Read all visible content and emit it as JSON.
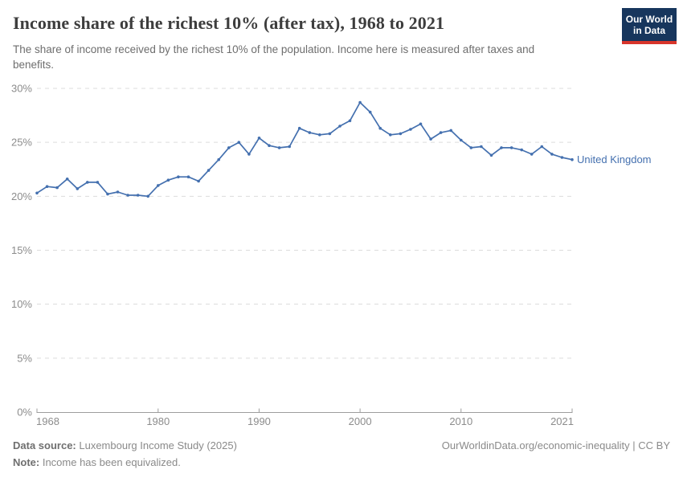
{
  "header": {
    "title": "Income share of the richest 10% (after tax), 1968 to 2021",
    "subtitle": "The share of income received by the richest 10% of the population. Income here is measured after taxes and benefits.",
    "logo": {
      "line1": "Our World",
      "line2": "in Data"
    }
  },
  "footer": {
    "source_label": "Data source:",
    "source_text": " Luxembourg Income Study (2025)",
    "note_label": "Note:",
    "note_text": " Income has been equivalized.",
    "citation": "OurWorldinData.org/economic-inequality | CC BY"
  },
  "colors": {
    "series_blue": "#4470af",
    "grid": "#dcdcdc",
    "axis": "#9e9e9e",
    "tick_label": "#8c8c8c",
    "logo_bg": "#17365d",
    "logo_red": "#d8352b"
  },
  "chart_data": {
    "type": "line",
    "title": "Income share of the richest 10% (after tax), 1968 to 2021",
    "xlabel": "",
    "ylabel": "",
    "xlim": [
      1968,
      2021
    ],
    "ylim": [
      0,
      30
    ],
    "x_ticks": [
      1968,
      1980,
      1990,
      2000,
      2010,
      2021
    ],
    "y_ticks": [
      0,
      5,
      10,
      15,
      20,
      25,
      30
    ],
    "y_tick_suffix": "%",
    "grid": "dashed horizontal",
    "legend_position": "end-of-line label",
    "series": [
      {
        "name": "United Kingdom",
        "color": "#4470af",
        "x": [
          1968,
          1969,
          1970,
          1971,
          1972,
          1973,
          1974,
          1975,
          1976,
          1977,
          1978,
          1979,
          1980,
          1981,
          1982,
          1983,
          1984,
          1985,
          1986,
          1987,
          1988,
          1989,
          1990,
          1991,
          1992,
          1993,
          1994,
          1995,
          1996,
          1997,
          1998,
          1999,
          2000,
          2001,
          2002,
          2003,
          2004,
          2005,
          2006,
          2007,
          2008,
          2009,
          2010,
          2011,
          2012,
          2013,
          2014,
          2015,
          2016,
          2017,
          2018,
          2019,
          2020,
          2021
        ],
        "values": [
          20.3,
          20.9,
          20.8,
          21.6,
          20.7,
          21.3,
          21.3,
          20.2,
          20.4,
          20.1,
          20.1,
          20.0,
          21.0,
          21.5,
          21.8,
          21.8,
          21.4,
          22.4,
          23.4,
          24.5,
          25.0,
          23.9,
          25.4,
          24.7,
          24.5,
          24.6,
          26.3,
          25.9,
          25.7,
          25.8,
          26.5,
          27.0,
          28.7,
          27.8,
          26.3,
          25.7,
          25.8,
          26.2,
          26.7,
          25.3,
          25.9,
          26.1,
          25.2,
          24.5,
          24.6,
          23.8,
          24.5,
          24.5,
          24.3,
          23.9,
          24.6,
          23.9,
          23.6,
          23.4
        ]
      }
    ]
  }
}
